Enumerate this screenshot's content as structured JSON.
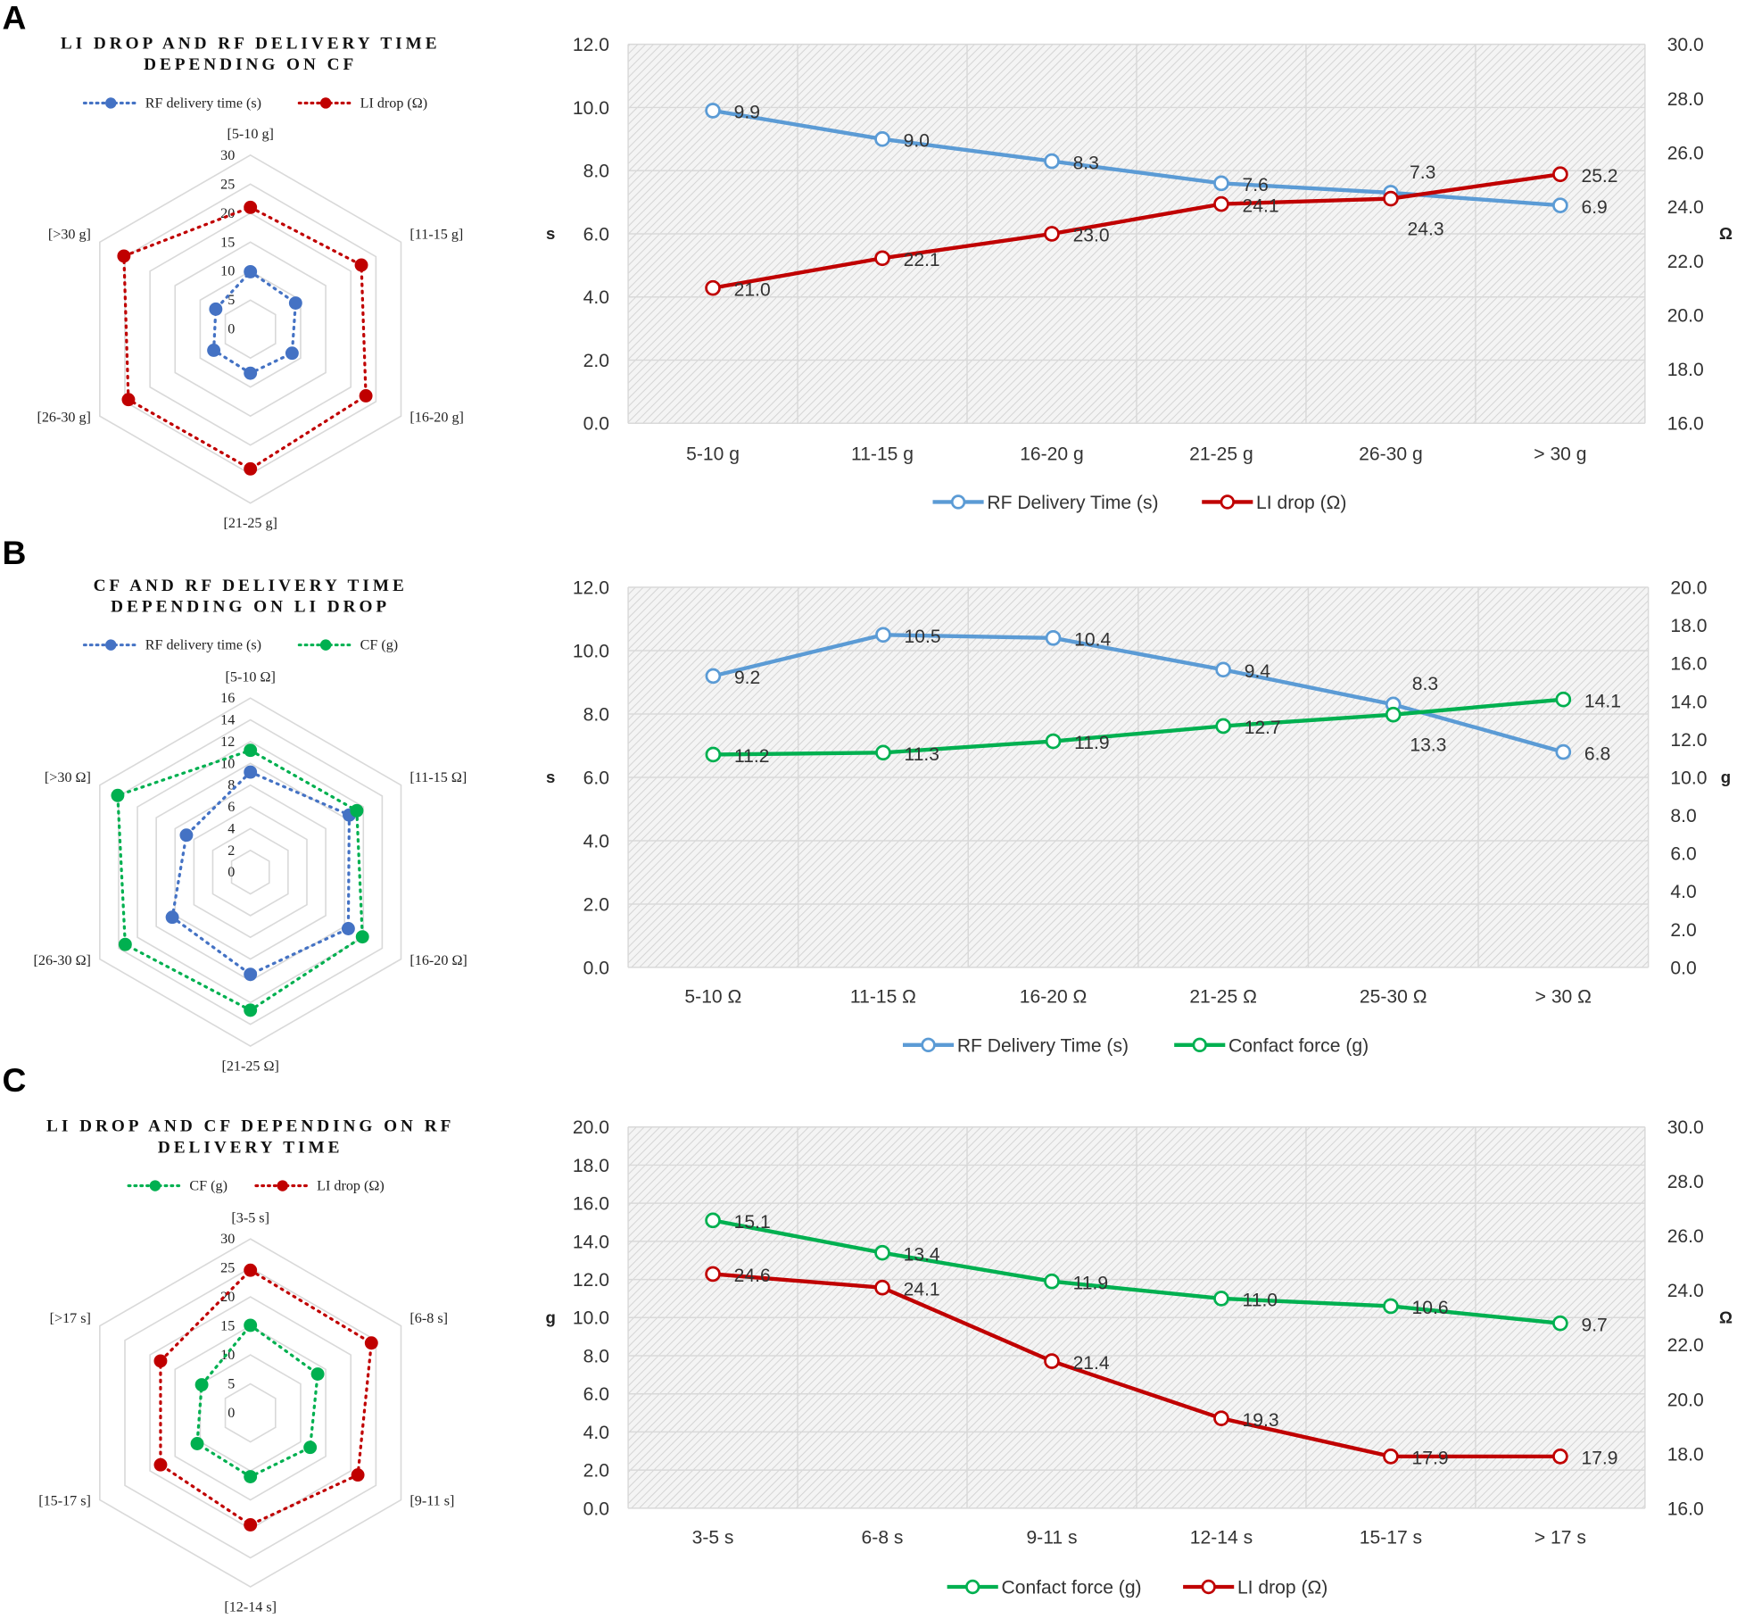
{
  "panels": [
    "A",
    "B",
    "C"
  ],
  "chart_data": [
    {
      "type": "radar",
      "title": [
        "LI DROP AND RF DELIVERY TIME",
        "DEPENDING ON CF"
      ],
      "categories": [
        "[5-10 g]",
        "[11-15 g]",
        "[16-20 g]",
        "[21-25 g]",
        "[26-30 g]",
        "[>30 g]"
      ],
      "rmax": 30,
      "rstep": 5,
      "legend": "top",
      "series": [
        {
          "name": "RF delivery time (s)",
          "color": "#4472c4",
          "values": [
            9.9,
            9.0,
            8.3,
            7.6,
            7.3,
            6.9
          ]
        },
        {
          "name": "LI drop (Ω)",
          "color": "#c00000",
          "values": [
            21.0,
            22.1,
            23.0,
            24.1,
            24.3,
            25.2
          ]
        }
      ]
    },
    {
      "type": "radar",
      "title": [
        "CF AND RF DELIVERY TIME",
        "DEPENDING ON LI DROP"
      ],
      "categories": [
        "[5-10 Ω]",
        "[11-15 Ω]",
        "[16-20 Ω]",
        "[21-25 Ω]",
        "[26-30 Ω]",
        "[>30 Ω]"
      ],
      "rmax": 16,
      "rstep": 2,
      "legend": "top",
      "series": [
        {
          "name": "RF delivery time (s)",
          "color": "#4472c4",
          "values": [
            9.2,
            10.5,
            10.4,
            9.4,
            8.3,
            6.8
          ]
        },
        {
          "name": "CF (g)",
          "color": "#00b050",
          "values": [
            11.2,
            11.3,
            11.9,
            12.7,
            13.3,
            14.1
          ]
        }
      ]
    },
    {
      "type": "radar",
      "title": [
        "LI DROP AND CF DEPENDING ON RF",
        "DELIVERY TIME"
      ],
      "categories": [
        "[3-5 s]",
        "[6-8 s]",
        "[9-11 s]",
        "[12-14 s]",
        "[15-17 s]",
        "[>17 s]"
      ],
      "rmax": 30,
      "rstep": 5,
      "legend": "top",
      "series": [
        {
          "name": "CF (g)",
          "color": "#00b050",
          "values": [
            15.1,
            13.4,
            11.9,
            11.0,
            10.6,
            9.7
          ]
        },
        {
          "name": "LI drop (Ω)",
          "color": "#c00000",
          "values": [
            24.6,
            24.1,
            21.4,
            19.3,
            17.9,
            17.9
          ]
        }
      ]
    },
    {
      "type": "line",
      "categories": [
        "5-10 g",
        "11-15 g",
        "16-20 g",
        "21-25 g",
        "26-30 g",
        "> 30 g"
      ],
      "ylabel": "s",
      "ylim": [
        0,
        12
      ],
      "ystep": 2,
      "y2label": "Ω",
      "y2lim": [
        16,
        30
      ],
      "y2step": 2,
      "grid": true,
      "legend": "bottom",
      "series": [
        {
          "name": "RF Delivery Time (s)",
          "axis": "left",
          "color": "#5b9bd5",
          "values": [
            9.9,
            9.0,
            8.3,
            7.6,
            7.3,
            6.9
          ]
        },
        {
          "name": "LI drop (Ω)",
          "axis": "right",
          "color": "#c00000",
          "values": [
            21.0,
            22.1,
            23.0,
            24.1,
            24.3,
            25.2
          ]
        }
      ]
    },
    {
      "type": "line",
      "categories": [
        "5-10 Ω",
        "11-15 Ω",
        "16-20 Ω",
        "21-25 Ω",
        "25-30 Ω",
        "> 30 Ω"
      ],
      "ylabel": "s",
      "ylim": [
        0,
        12
      ],
      "ystep": 2,
      "y2label": "g",
      "y2lim": [
        0,
        20
      ],
      "y2step": 2,
      "grid": true,
      "legend": "bottom",
      "series": [
        {
          "name": "RF Delivery Time (s)",
          "axis": "left",
          "color": "#5b9bd5",
          "values": [
            9.2,
            10.5,
            10.4,
            9.4,
            8.3,
            6.8
          ]
        },
        {
          "name": "Confact force (g)",
          "axis": "right",
          "color": "#00b050",
          "values": [
            11.2,
            11.3,
            11.9,
            12.7,
            13.3,
            14.1
          ]
        }
      ]
    },
    {
      "type": "line",
      "categories": [
        "3-5 s",
        "6-8 s",
        "9-11 s",
        "12-14 s",
        "15-17 s",
        "> 17 s"
      ],
      "ylabel": "g",
      "ylim": [
        0,
        20
      ],
      "ystep": 2,
      "y2label": "Ω",
      "y2lim": [
        16,
        30
      ],
      "y2step": 2,
      "grid": true,
      "legend": "bottom",
      "series": [
        {
          "name": "Confact force (g)",
          "axis": "left",
          "color": "#00b050",
          "values": [
            15.1,
            13.4,
            11.9,
            11.0,
            10.6,
            9.7
          ]
        },
        {
          "name": "LI drop (Ω)",
          "axis": "right",
          "color": "#c00000",
          "values": [
            24.6,
            24.1,
            21.4,
            19.3,
            17.9,
            17.9
          ]
        }
      ]
    }
  ]
}
